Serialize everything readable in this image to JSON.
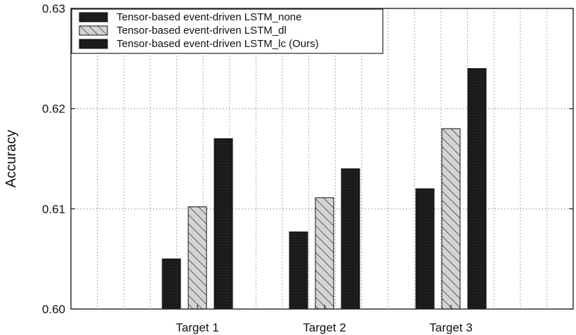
{
  "chart_data": {
    "type": "bar",
    "title": "",
    "xlabel": "",
    "ylabel": "Accuracy",
    "ylim": [
      0.6,
      0.63
    ],
    "yticks": [
      "0.60",
      "0.61",
      "0.62",
      "0.63"
    ],
    "categories": [
      "Target 1",
      "Target 2",
      "Target 3"
    ],
    "grid": true,
    "legend_position": "top-left",
    "series": [
      {
        "name": "Tensor-based event-driven LSTM_none",
        "values": [
          0.605,
          0.6077,
          0.612
        ],
        "color": "#1c1c1c",
        "pattern": "solid-dark"
      },
      {
        "name": "Tensor-based event-driven LSTM_dl",
        "values": [
          0.6102,
          0.6111,
          0.618
        ],
        "color": "#cfcfcf",
        "pattern": "diagonal-hatch"
      },
      {
        "name": "Tensor-based event-driven LSTM_lc (Ours)",
        "values": [
          0.617,
          0.614,
          0.624
        ],
        "color": "#1c1c1c",
        "pattern": "solid-dark"
      }
    ]
  }
}
